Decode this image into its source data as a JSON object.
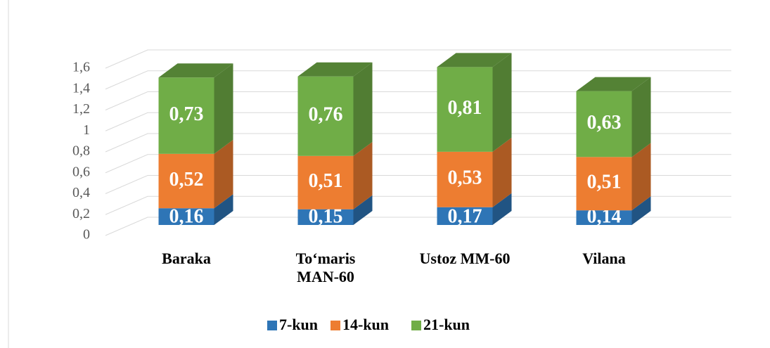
{
  "chart_data": {
    "type": "bar3d_stacked",
    "categories": [
      "Baraka",
      "To‘maris MAN-60",
      "Ustoz MM-60",
      "Vilana"
    ],
    "series": [
      {
        "name": "7-kun",
        "color": "#2e75b6",
        "values": [
          0.16,
          0.15,
          0.17,
          0.14
        ],
        "value_labels": [
          "0,16",
          "0,15",
          "0,17",
          "0,14"
        ]
      },
      {
        "name": "14-kun",
        "color": "#ed7d31",
        "values": [
          0.52,
          0.51,
          0.53,
          0.51
        ],
        "value_labels": [
          "0,52",
          "0,51",
          "0,53",
          "0,51"
        ]
      },
      {
        "name": "21-kun",
        "color": "#70ad47",
        "values": [
          0.73,
          0.76,
          0.81,
          0.63
        ],
        "value_labels": [
          "0,73",
          "0,76",
          "0,81",
          "0,63"
        ]
      }
    ],
    "ylim": [
      0,
      1.6
    ],
    "yticks": [
      0,
      {
        "value": 0.2,
        "label": "0,2"
      },
      {
        "value": 0.4,
        "label": "0,4"
      },
      {
        "value": 0.6,
        "label": "0,6"
      },
      {
        "value": 0.8,
        "label": "0,8"
      },
      1,
      {
        "value": 1.2,
        "label": "1,2"
      },
      {
        "value": 1.4,
        "label": "1,4"
      },
      {
        "value": 1.6,
        "label": "1,6"
      }
    ],
    "grid": true,
    "legend": "bottom"
  }
}
